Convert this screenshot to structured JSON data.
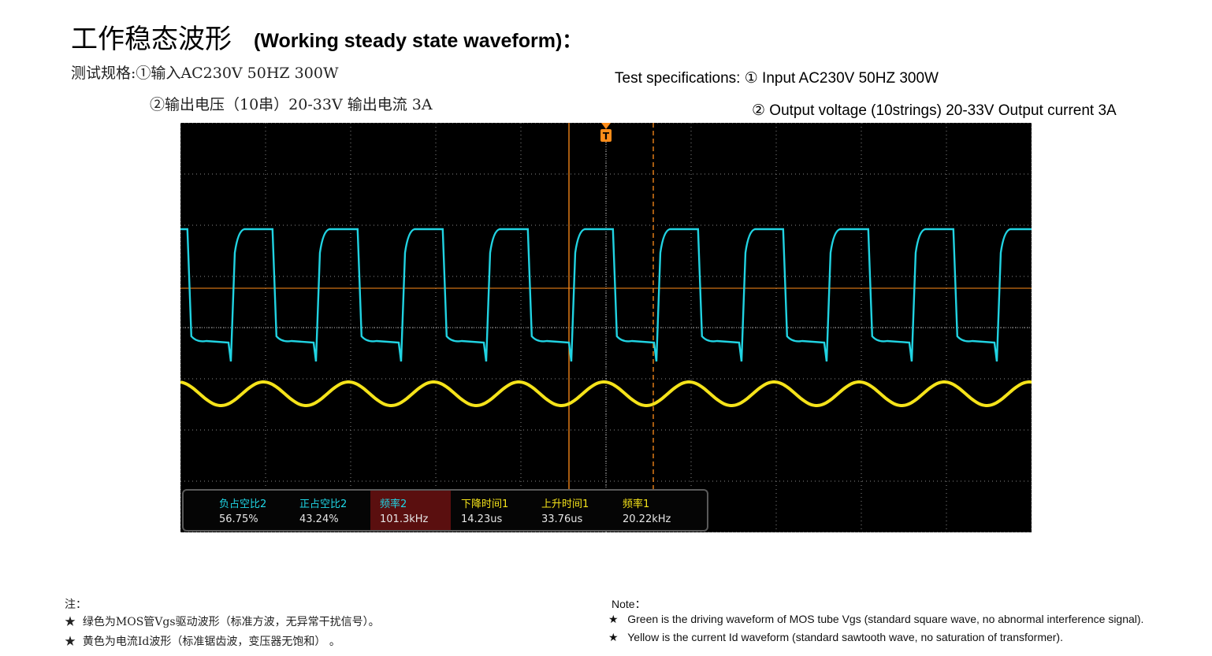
{
  "title": {
    "cn": "工作稳态波形",
    "en": "(Working steady state waveform)："
  },
  "spec_cn": {
    "line1": "测试规格:①输入AC230V 50HZ 300W",
    "line2": "②输出电压（10串）20-33V  输出电流 3A"
  },
  "spec_en": {
    "line1": "Test specifications: ① Input AC230V  50HZ  300W",
    "line2": "② Output voltage (10strings) 20-33V   Output current 3A"
  },
  "scope": {
    "trigger_marker": "T",
    "colors": {
      "background": "#000000",
      "grid": "#8a8a8a",
      "cyan_trace": "#21d3e2",
      "yellow_trace": "#f5e31a",
      "cursor": "#ff8c1a"
    },
    "cyan_cycles": 10,
    "yellow_cycles": 10,
    "measurements": [
      {
        "label": "负占空比2",
        "value": "56.75%",
        "color": "cyan",
        "highlight": false
      },
      {
        "label": "正占空比2",
        "value": "43.24%",
        "color": "cyan",
        "highlight": false
      },
      {
        "label": "频率2",
        "value": "101.3kHz",
        "color": "cyan",
        "highlight": true
      },
      {
        "label": "下降时间1",
        "value": "14.23us",
        "color": "yellow",
        "highlight": false
      },
      {
        "label": "上升时间1",
        "value": "33.76us",
        "color": "yellow",
        "highlight": false
      },
      {
        "label": "频率1",
        "value": "20.22kHz",
        "color": "yellow",
        "highlight": false
      }
    ]
  },
  "notes_cn": {
    "header": "注：",
    "items": [
      "绿色为MOS管Vgs驱动波形（标准方波，无异常干扰信号）。",
      "黄色为电流Id波形（标准锯齿波，变压器无饱和） 。"
    ]
  },
  "notes_en": {
    "header": "Note：",
    "items": [
      "Green is the driving waveform of MOS tube Vgs (standard square wave, no abnormal interference signal).",
      "Yellow is the current Id waveform (standard sawtooth wave, no saturation of transformer)."
    ]
  },
  "bullet": "★"
}
